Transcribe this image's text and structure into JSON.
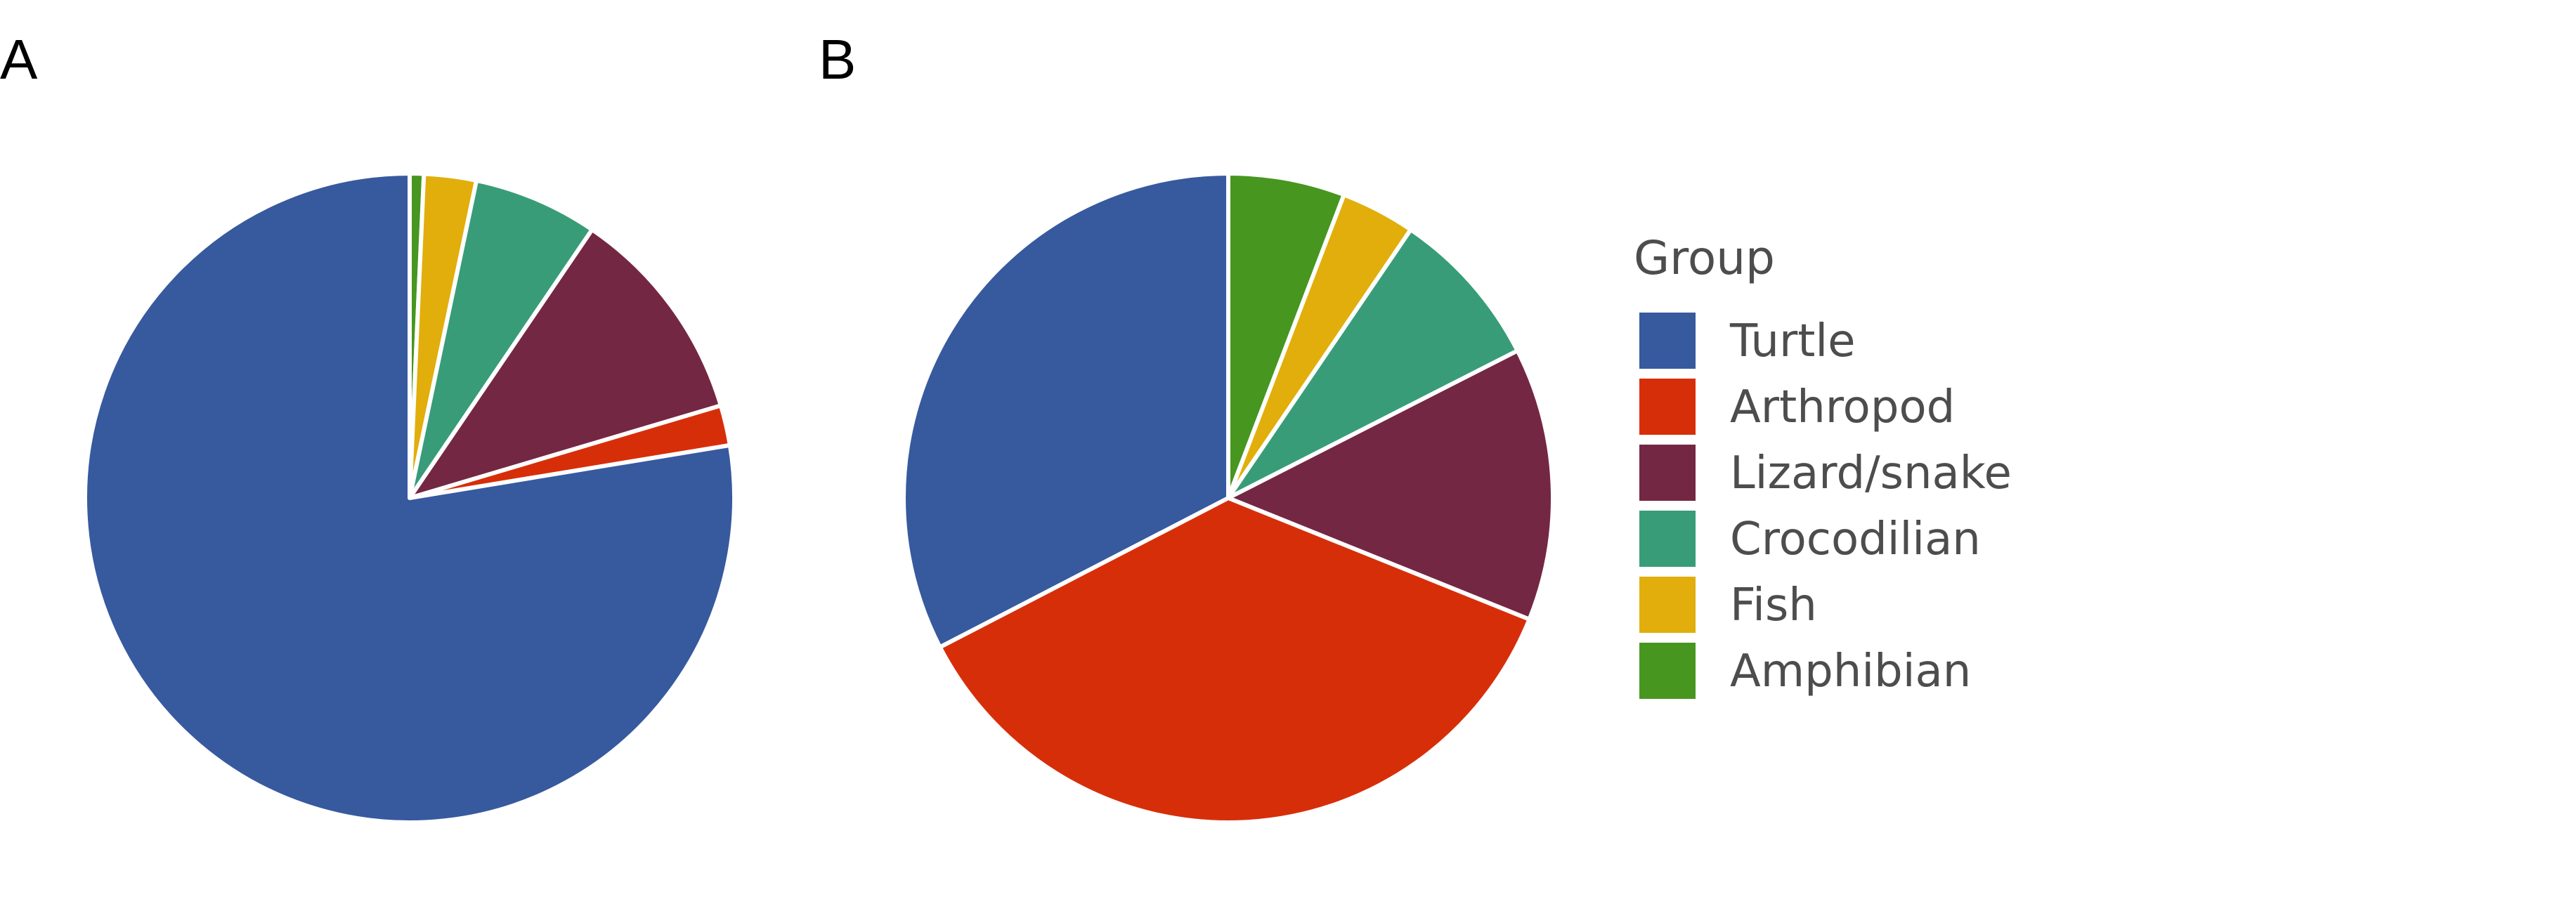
{
  "chart_data": [
    {
      "type": "pie",
      "panel_label": "A",
      "start": "top",
      "direction": "clockwise",
      "order": [
        "Amphibian",
        "Fish",
        "Crocodilian",
        "Lizard/snake",
        "Arthropod",
        "Turtle"
      ],
      "values": [
        0.7,
        2.6,
        6.2,
        10.9,
        2.0,
        77.6
      ]
    },
    {
      "type": "pie",
      "panel_label": "B",
      "start": "top",
      "direction": "clockwise",
      "order": [
        "Amphibian",
        "Fish",
        "Crocodilian",
        "Lizard/snake",
        "Arthropod",
        "Turtle"
      ],
      "values": [
        5.8,
        3.7,
        8.0,
        13.6,
        36.3,
        32.6
      ]
    }
  ],
  "legend": {
    "title": "Group",
    "entries": [
      {
        "label": "Turtle",
        "color": "#37599e"
      },
      {
        "label": "Arthropod",
        "color": "#d72e0a"
      },
      {
        "label": "Lizard/snake",
        "color": "#742742"
      },
      {
        "label": "Crocodilian",
        "color": "#389c79"
      },
      {
        "label": "Fish",
        "color": "#e1ae0b"
      },
      {
        "label": "Amphibian",
        "color": "#479620"
      }
    ]
  }
}
